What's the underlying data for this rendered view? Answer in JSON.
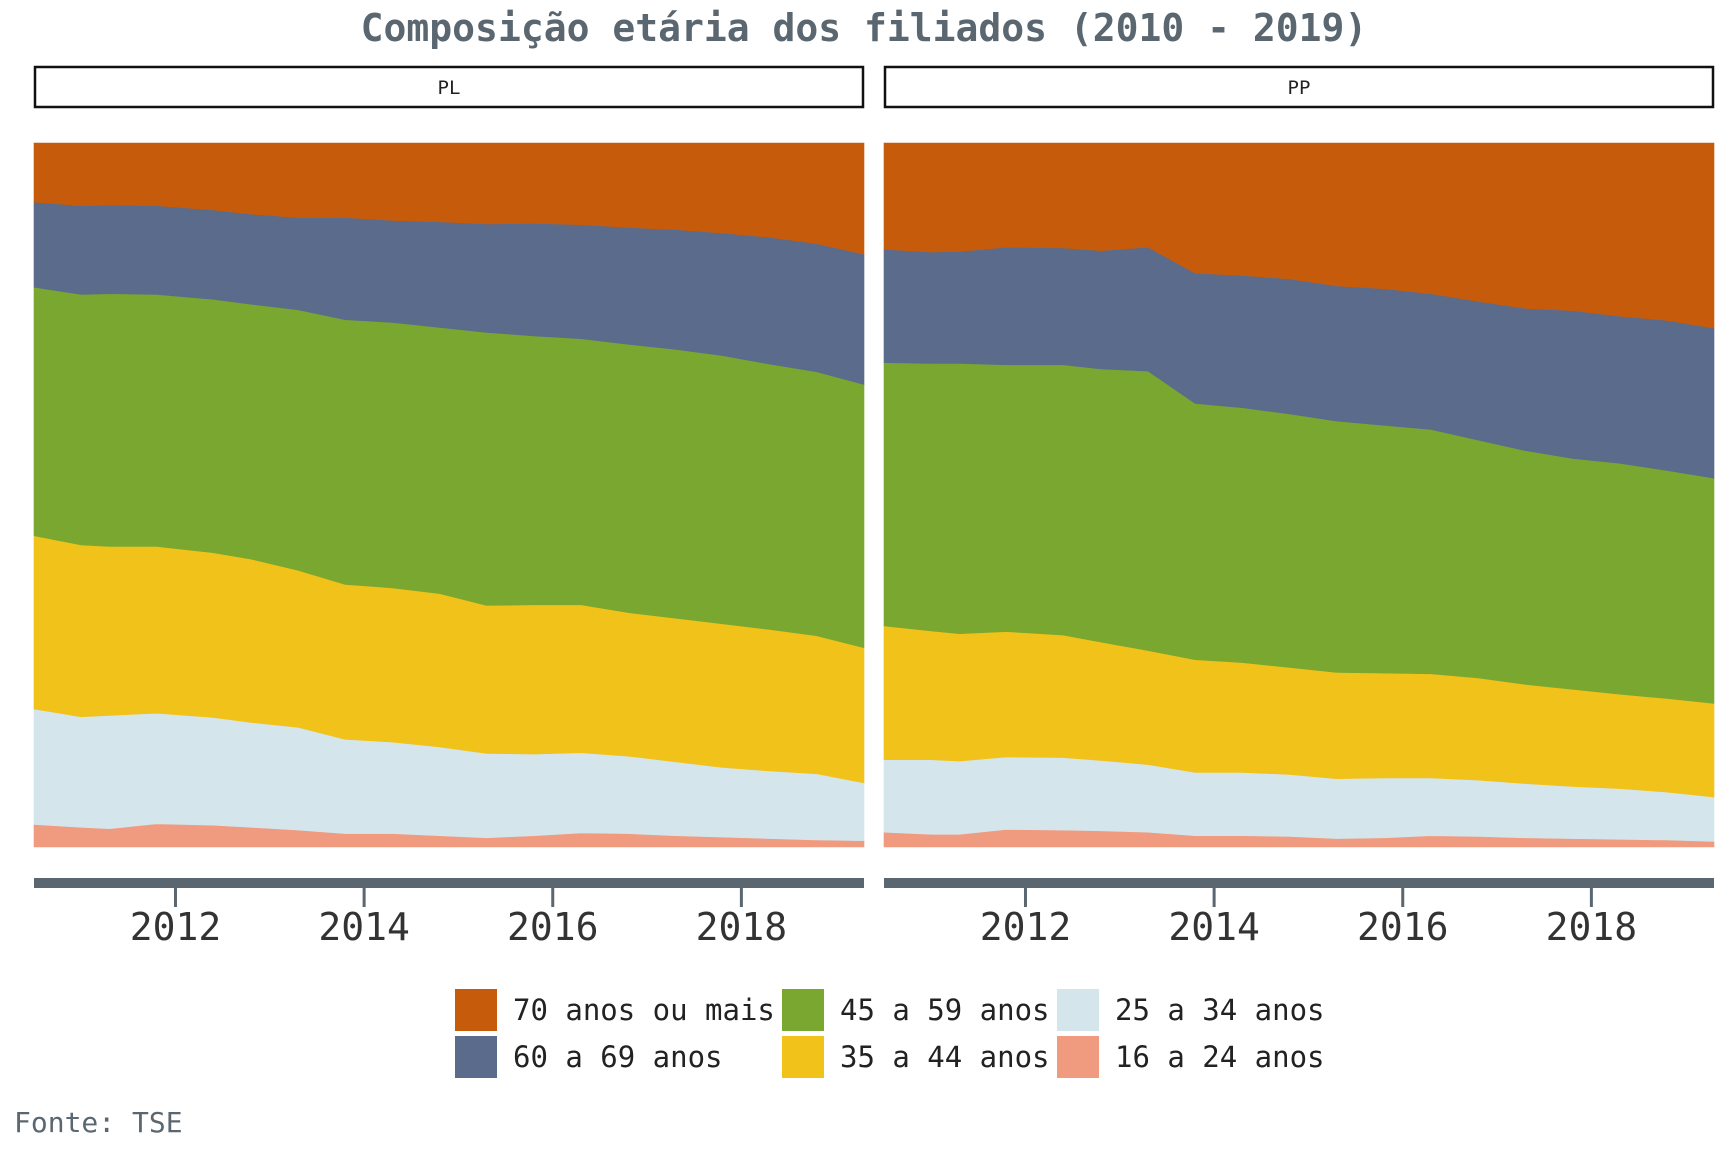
{
  "title": "Composição etária dos filiados (2010 - 2019)",
  "source": "Fonte: TSE",
  "chart_data": {
    "type": "area",
    "stacked": "fill",
    "x": [
      2010.5,
      2011,
      2011.3,
      2011.8,
      2012.4,
      2012.8,
      2013.3,
      2013.8,
      2014.3,
      2014.8,
      2015.3,
      2015.8,
      2016.3,
      2016.8,
      2017.3,
      2017.8,
      2018.3,
      2018.8,
      2019.3
    ],
    "xlim": [
      2010.5,
      2019.3
    ],
    "x_ticks": [
      "2012",
      "2014",
      "2016",
      "2018"
    ],
    "ylim": [
      0,
      1
    ],
    "grid": false,
    "legend_position": "bottom",
    "series_order": [
      "16 a 24 anos",
      "25 a 34 anos",
      "35 a 44 anos",
      "45 a 59 anos",
      "60 a 69 anos",
      "70 anos ou mais"
    ],
    "colors": {
      "16 a 24 anos": "#f09b7f",
      "25 a 34 anos": "#d5e5ec",
      "35 a 44 anos": "#f0c21a",
      "45 a 59 anos": "#7aa72f",
      "60 a 69 anos": "#5a6b8c",
      "70 anos ou mais": "#c65c0b"
    },
    "panels": [
      {
        "name": "PL",
        "series": [
          {
            "name": "16 a 24 anos",
            "values": [
              0.032,
              0.028,
              0.026,
              0.033,
              0.031,
              0.028,
              0.024,
              0.019,
              0.019,
              0.016,
              0.013,
              0.016,
              0.02,
              0.019,
              0.016,
              0.014,
              0.012,
              0.01,
              0.009
            ]
          },
          {
            "name": "25 a 34 anos",
            "values": [
              0.164,
              0.157,
              0.161,
              0.157,
              0.153,
              0.149,
              0.146,
              0.134,
              0.13,
              0.126,
              0.12,
              0.116,
              0.114,
              0.11,
              0.105,
              0.099,
              0.096,
              0.094,
              0.082
            ]
          },
          {
            "name": "35 a 44 anos",
            "values": [
              0.246,
              0.244,
              0.24,
              0.237,
              0.234,
              0.232,
              0.223,
              0.22,
              0.219,
              0.218,
              0.21,
              0.212,
              0.21,
              0.204,
              0.204,
              0.204,
              0.201,
              0.196,
              0.192
            ]
          },
          {
            "name": "45 a 59 anos",
            "values": [
              0.353,
              0.356,
              0.359,
              0.358,
              0.36,
              0.362,
              0.37,
              0.376,
              0.377,
              0.378,
              0.388,
              0.382,
              0.378,
              0.381,
              0.382,
              0.381,
              0.377,
              0.375,
              0.374
            ]
          },
          {
            "name": "60 a 69 anos",
            "values": [
              0.121,
              0.126,
              0.126,
              0.126,
              0.127,
              0.128,
              0.131,
              0.145,
              0.145,
              0.15,
              0.154,
              0.16,
              0.162,
              0.166,
              0.17,
              0.174,
              0.18,
              0.182,
              0.185
            ]
          },
          {
            "name": "70 anos ou mais",
            "values": [
              0.084,
              0.089,
              0.088,
              0.089,
              0.095,
              0.101,
              0.106,
              0.106,
              0.11,
              0.112,
              0.115,
              0.114,
              0.116,
              0.12,
              0.123,
              0.128,
              0.134,
              0.143,
              0.158
            ]
          }
        ]
      },
      {
        "name": "PP",
        "series": [
          {
            "name": "16 a 24 anos",
            "values": [
              0.021,
              0.018,
              0.018,
              0.025,
              0.024,
              0.023,
              0.021,
              0.016,
              0.016,
              0.015,
              0.012,
              0.013,
              0.016,
              0.015,
              0.013,
              0.012,
              0.011,
              0.01,
              0.008
            ]
          },
          {
            "name": "25 a 34 anos",
            "values": [
              0.103,
              0.106,
              0.104,
              0.103,
              0.103,
              0.1,
              0.096,
              0.09,
              0.09,
              0.088,
              0.085,
              0.085,
              0.082,
              0.08,
              0.077,
              0.074,
              0.072,
              0.068,
              0.063
            ]
          },
          {
            "name": "35 a 44 anos",
            "values": [
              0.19,
              0.183,
              0.181,
              0.178,
              0.174,
              0.168,
              0.162,
              0.16,
              0.156,
              0.152,
              0.151,
              0.149,
              0.148,
              0.145,
              0.141,
              0.138,
              0.134,
              0.133,
              0.133
            ]
          },
          {
            "name": "45 a 59 anos",
            "values": [
              0.374,
              0.38,
              0.384,
              0.379,
              0.384,
              0.388,
              0.397,
              0.364,
              0.362,
              0.36,
              0.357,
              0.352,
              0.347,
              0.338,
              0.332,
              0.328,
              0.328,
              0.324,
              0.32
            ]
          },
          {
            "name": "60 a 69 anos",
            "values": [
              0.161,
              0.158,
              0.159,
              0.167,
              0.166,
              0.168,
              0.176,
              0.185,
              0.188,
              0.192,
              0.192,
              0.194,
              0.193,
              0.197,
              0.202,
              0.21,
              0.209,
              0.213,
              0.213
            ]
          },
          {
            "name": "70 anos ou mais",
            "values": [
              0.151,
              0.155,
              0.154,
              0.148,
              0.149,
              0.153,
              0.148,
              0.185,
              0.188,
              0.193,
              0.203,
              0.207,
              0.214,
              0.225,
              0.235,
              0.238,
              0.246,
              0.252,
              0.263
            ]
          }
        ]
      }
    ]
  }
}
